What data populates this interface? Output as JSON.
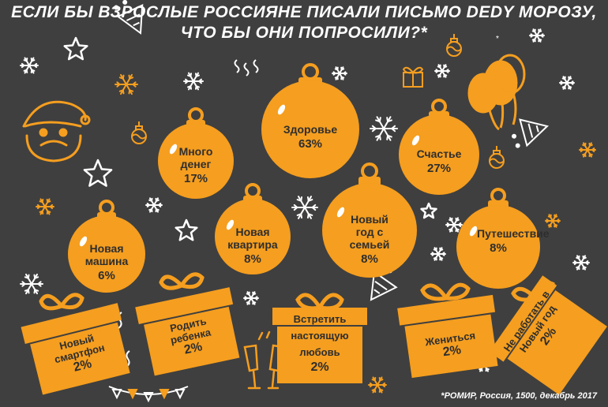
{
  "title_line1": "ЕСЛИ БЫ ВЗРОСЛЫЕ РОССИЯНЕ ПИСАЛИ ПИСЬМО DEDY МОРОЗУ,",
  "title_line2": "ЧТО БЫ ОНИ ПОПРОСИЛИ?*",
  "source": "*РОМИР, Россия, 1500, декабрь 2017",
  "colors": {
    "background": "#3f3f3f",
    "accent": "#f59e1f",
    "text_dark": "#2e2e2e",
    "text_light": "#ffffff"
  },
  "icons": [
    "santa-icon",
    "snowflake-icon",
    "star-icon",
    "balloons-icon",
    "champagne-glasses-icon",
    "garland-icon",
    "party-popper-icon",
    "small-bauble-icon"
  ],
  "chart_data": {
    "type": "infographic",
    "unit": "%",
    "items": [
      {
        "label": "Здоровье",
        "value": 63,
        "display": "63%",
        "shape": "ornament"
      },
      {
        "label": "Счастье",
        "value": 27,
        "display": "27%",
        "shape": "ornament"
      },
      {
        "label": "Много денег",
        "value": 17,
        "display": "17%",
        "shape": "ornament"
      },
      {
        "label": "Новая квартира",
        "value": 8,
        "display": "8%",
        "shape": "ornament"
      },
      {
        "label": "Новый год с семьей",
        "value": 8,
        "display": "8%",
        "shape": "ornament"
      },
      {
        "label": "Путешествие",
        "value": 8,
        "display": "8%",
        "shape": "ornament"
      },
      {
        "label": "Новая машина",
        "value": 6,
        "display": "6%",
        "shape": "ornament"
      },
      {
        "label": "Новый смартфон",
        "value": 2,
        "display": "2%",
        "shape": "gift"
      },
      {
        "label": "Родить ребенка",
        "value": 2,
        "display": "2%",
        "shape": "gift"
      },
      {
        "label": "Встретить настоящую любовь",
        "value": 2,
        "display": "2%",
        "shape": "gift"
      },
      {
        "label": "Жениться",
        "value": 2,
        "display": "2%",
        "shape": "gift"
      },
      {
        "label": "Не работать в Новый год",
        "value": 2,
        "display": "2%",
        "shape": "gift"
      }
    ]
  }
}
